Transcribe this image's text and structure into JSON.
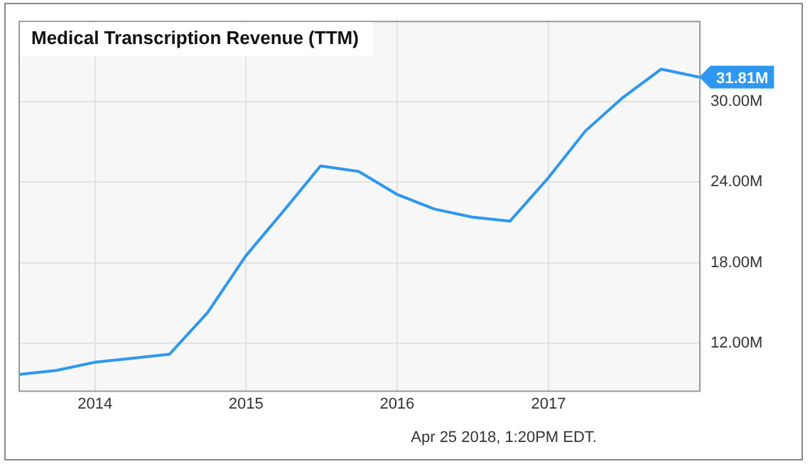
{
  "chart_data": {
    "type": "line",
    "title": "Medical Transcription Revenue (TTM)",
    "x": [
      "2013-06-30",
      "2013-09-30",
      "2013-12-31",
      "2014-03-31",
      "2014-06-30",
      "2014-09-30",
      "2014-12-31",
      "2015-03-31",
      "2015-06-30",
      "2015-09-30",
      "2015-12-31",
      "2016-03-31",
      "2016-06-30",
      "2016-09-30",
      "2016-12-31",
      "2017-03-31",
      "2017-06-30",
      "2017-09-30",
      "2017-12-31"
    ],
    "series": [
      {
        "color": "#2e97ef",
        "values": [
          9.7,
          10,
          10.6,
          10.9,
          11.2,
          14.3,
          18.5,
          21.8,
          25.2,
          24.8,
          23.1,
          22,
          21.4,
          21.1,
          24.3,
          27.8,
          30.3,
          32.4,
          31.81
        ],
        "value_labels": [
          null,
          null,
          null,
          null,
          null,
          null,
          null,
          null,
          null,
          null,
          null,
          null,
          null,
          null,
          null,
          null,
          null,
          null,
          "31.81M"
        ]
      }
    ],
    "xlim": [
      "2013-06-30",
      "2017-12-31"
    ],
    "xticks": [
      {
        "value": "2014",
        "label": "2014"
      },
      {
        "value": "2015",
        "label": "2015"
      },
      {
        "value": "2016",
        "label": "2016"
      },
      {
        "value": "2017",
        "label": "2017"
      }
    ],
    "ylim": [
      8.5,
      36
    ],
    "yticks": [
      {
        "value": 12,
        "label": "12.00M"
      },
      {
        "value": 18,
        "label": "18.00M"
      },
      {
        "value": 24,
        "label": "24.00M"
      },
      {
        "value": 30,
        "label": "30.00M"
      }
    ],
    "grid": true,
    "legend": false,
    "marker": "none",
    "line_style": "solid",
    "annotations": [
      "Apr 25 2018, 1:20PM EDT."
    ]
  }
}
